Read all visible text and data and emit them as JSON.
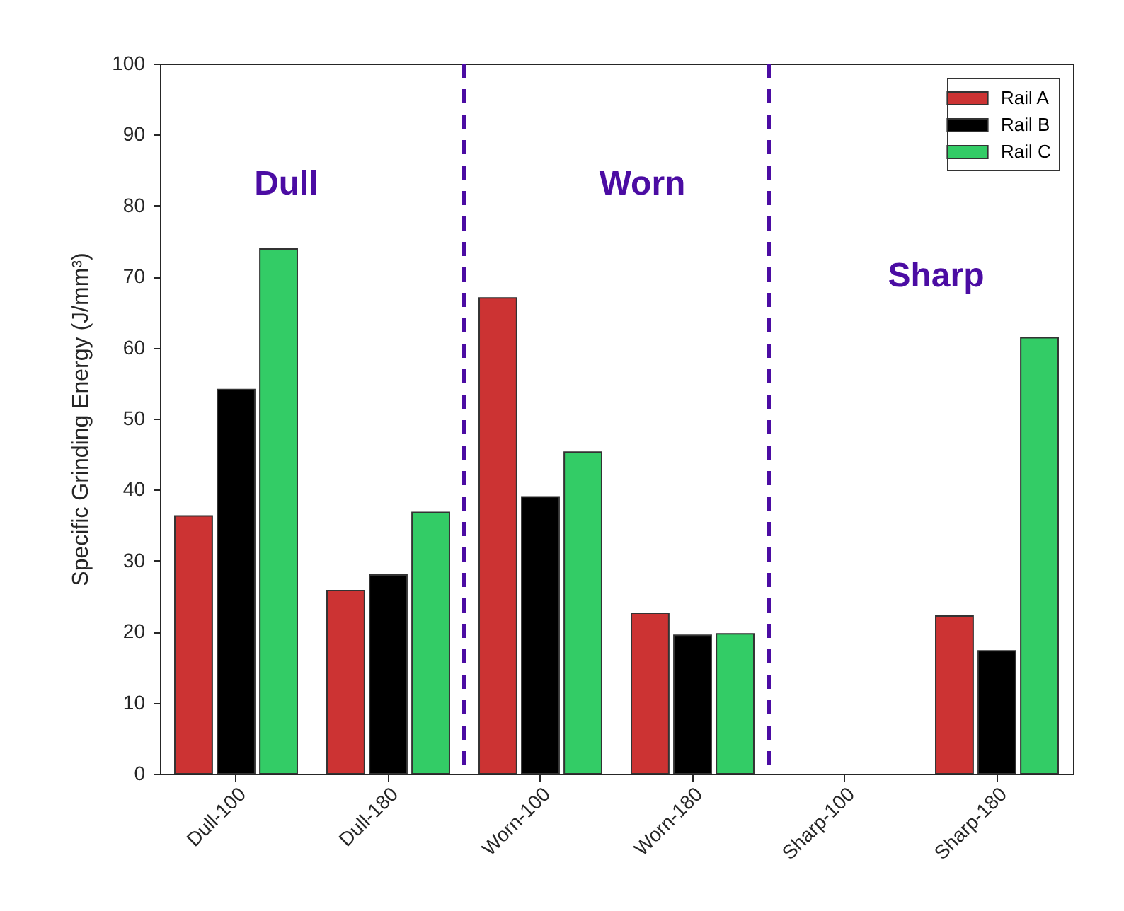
{
  "chart_data": {
    "type": "bar",
    "ylabel": "Specific Grinding Energy (J/mm³)",
    "categories": [
      "Dull-100",
      "Dull-180",
      "Worn-100",
      "Worn-180",
      "Sharp-100",
      "Sharp-180"
    ],
    "series": [
      {
        "name": "Rail A",
        "color": "#cc3333",
        "values": [
          36.3,
          25.8,
          67.0,
          22.6,
          null,
          22.2
        ]
      },
      {
        "name": "Rail B",
        "color": "#000000",
        "values": [
          54.1,
          28.0,
          39.0,
          19.5,
          null,
          17.3
        ]
      },
      {
        "name": "Rail C",
        "color": "#33cc66",
        "values": [
          73.9,
          36.8,
          45.3,
          19.7,
          null,
          61.4
        ]
      }
    ],
    "ylim": [
      0,
      100
    ],
    "yticks": [
      0,
      10,
      20,
      30,
      40,
      50,
      60,
      70,
      80,
      90,
      100
    ],
    "grid": false,
    "legend": "top right",
    "annotations": [
      "Dull",
      "Worn",
      "Sharp"
    ]
  }
}
